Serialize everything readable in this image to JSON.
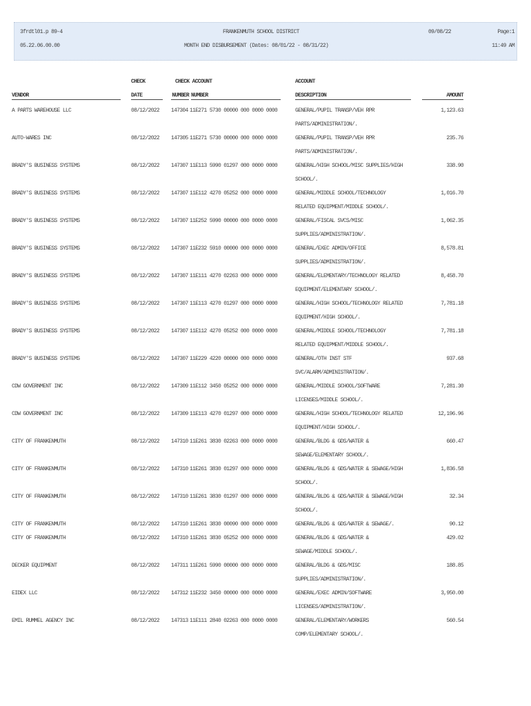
{
  "header": {
    "program": "3frdtl01.p 89-4",
    "version": "05.22.06.00.00",
    "district": "FRANKENMUTH SCHOOL DISTRICT",
    "report_title": "MONTH END DISBURSEMENT (Dates: 08/01/22 - 08/31/22)",
    "run_date": "09/08/22",
    "page": "Page:1",
    "run_time": "11:49 AM",
    "background_color": "#e3ecf8"
  },
  "columns": {
    "vendor": "VENDOR",
    "check_top": "CHECK",
    "date": "DATE",
    "check_account_top": "CHECK ACCOUNT",
    "number": "NUMBER",
    "number2": "NUMBER",
    "account_top": "ACCOUNT",
    "description": "DESCRIPTION",
    "amount": "AMOUNT"
  },
  "rows": [
    {
      "vendor": "A PARTS WAREHOUSE LLC",
      "date": "08/12/2022",
      "check": "147304",
      "account": "11E271 5730 00000 000 0000 0000",
      "desc": [
        "GENERAL/PUPIL TRANSP/VEH RPR",
        "PARTS/ADMINISTRATION/."
      ],
      "amount": "1,123.63"
    },
    {
      "vendor": "AUTO-WARES INC",
      "date": "08/12/2022",
      "check": "147305",
      "account": "11E271 5730 00000 000 0000 0000",
      "desc": [
        "GENERAL/PUPIL TRANSP/VEH RPR",
        "PARTS/ADMINISTRATION/."
      ],
      "amount": "235.76"
    },
    {
      "vendor": "BRADY'S BUSINESS SYSTEMS",
      "date": "08/12/2022",
      "check": "147307",
      "account": "11E113 5990 01297 000 0000 0000",
      "desc": [
        "GENERAL/HIGH SCHOOL/MISC SUPPLIES/HIGH",
        "SCHOOL/."
      ],
      "amount": "338.90"
    },
    {
      "vendor": "BRADY'S BUSINESS SYSTEMS",
      "date": "08/12/2022",
      "check": "147307",
      "account": "11E112 4270 05252 000 0000 0000",
      "desc": [
        "GENERAL/MIDDLE SCHOOL/TECHNOLOGY",
        "RELATED EQUIPMENT/MIDDLE SCHOOL/."
      ],
      "amount": "1,016.70"
    },
    {
      "vendor": "BRADY'S BUSINESS SYSTEMS",
      "date": "08/12/2022",
      "check": "147307",
      "account": "11E252 5990 00000 000 0000 0000",
      "desc": [
        "GENERAL/FISCAL SVCS/MISC",
        "SUPPLIES/ADMINISTRATION/."
      ],
      "amount": "1,062.35"
    },
    {
      "vendor": "BRADY'S BUSINESS SYSTEMS",
      "date": "08/12/2022",
      "check": "147307",
      "account": "11E232 5910 00000 000 0000 0000",
      "desc": [
        "GENERAL/EXEC ADMIN/OFFICE",
        "SUPPLIES/ADMINISTRATION/."
      ],
      "amount": "8,578.81"
    },
    {
      "vendor": "BRADY'S BUSINESS SYSTEMS",
      "date": "08/12/2022",
      "check": "147307",
      "account": "11E111 4270 02263 000 0000 0000",
      "desc": [
        "GENERAL/ELEMENTARY/TECHNOLOGY RELATED",
        "EQUIPMENT/ELEMENTARY SCHOOL/."
      ],
      "amount": "8,458.70"
    },
    {
      "vendor": "BRADY'S BUSINESS SYSTEMS",
      "date": "08/12/2022",
      "check": "147307",
      "account": "11E113 4270 01297 000 0000 0000",
      "desc": [
        "GENERAL/HIGH SCHOOL/TECHNOLOGY RELATED",
        "EQUIPMENT/HIGH SCHOOL/."
      ],
      "amount": "7,781.18"
    },
    {
      "vendor": "BRADY'S BUSINESS SYSTEMS",
      "date": "08/12/2022",
      "check": "147307",
      "account": "11E112 4270 05252 000 0000 0000",
      "desc": [
        "GENERAL/MIDDLE SCHOOL/TECHNOLOGY",
        "RELATED EQUIPMENT/MIDDLE SCHOOL/."
      ],
      "amount": "7,781.18"
    },
    {
      "vendor": "BRADY'S BUSINESS SYSTEMS",
      "date": "08/12/2022",
      "check": "147307",
      "account": "11E229 4220 00000 000 0000 0000",
      "desc": [
        "GENERAL/OTH INST STF",
        "SVC/ALARM/ADMINISTRATION/."
      ],
      "amount": "937.68"
    },
    {
      "vendor": "CDW GOVERNMENT INC",
      "date": "08/12/2022",
      "check": "147309",
      "account": "11E112 3450 05252 000 0000 0000",
      "desc": [
        "GENERAL/MIDDLE SCHOOL/SOFTWARE",
        "LICENSES/MIDDLE SCHOOL/."
      ],
      "amount": "7,281.30"
    },
    {
      "vendor": "CDW GOVERNMENT INC",
      "date": "08/12/2022",
      "check": "147309",
      "account": "11E113 4270 01297 000 0000 0000",
      "desc": [
        "GENERAL/HIGH SCHOOL/TECHNOLOGY RELATED",
        "EQUIPMENT/HIGH SCHOOL/."
      ],
      "amount": "12,196.96"
    },
    {
      "vendor": "CITY OF FRANKENMUTH",
      "date": "08/12/2022",
      "check": "147310",
      "account": "11E261 3830 02263 000 0000 0000",
      "desc": [
        "GENERAL/BLDG & GDS/WATER &",
        "SEWAGE/ELEMENTARY SCHOOL/."
      ],
      "amount": "660.47"
    },
    {
      "vendor": "CITY OF FRANKENMUTH",
      "date": "08/12/2022",
      "check": "147310",
      "account": "11E261 3830 01297 000 0000 0000",
      "desc": [
        "GENERAL/BLDG & GDS/WATER & SEWAGE/HIGH",
        "SCHOOL/."
      ],
      "amount": "1,836.58"
    },
    {
      "vendor": "CITY OF FRANKENMUTH",
      "date": "08/12/2022",
      "check": "147310",
      "account": "11E261 3830 01297 000 0000 0000",
      "desc": [
        "GENERAL/BLDG & GDS/WATER & SEWAGE/HIGH",
        "SCHOOL/."
      ],
      "amount": "32.34"
    },
    {
      "vendor": "CITY OF FRANKENMUTH",
      "date": "08/12/2022",
      "check": "147310",
      "account": "11E261 3830 00090 000 0000 0000",
      "desc": [
        "GENERAL/BLDG & GDS/WATER & SEWAGE/."
      ],
      "amount": "90.12"
    },
    {
      "vendor": "CITY OF FRANKENMUTH",
      "date": "08/12/2022",
      "check": "147310",
      "account": "11E261 3830 05252 000 0000 0000",
      "desc": [
        "GENERAL/BLDG & GDS/WATER &",
        "SEWAGE/MIDDLE SCHOOL/."
      ],
      "amount": "429.02"
    },
    {
      "vendor": "DECKER EQUIPMENT",
      "date": "08/12/2022",
      "check": "147311",
      "account": "11E261 5990 00000 000 0000 0000",
      "desc": [
        "GENERAL/BLDG & GDS/MISC",
        "SUPPLIES/ADMINISTRATION/."
      ],
      "amount": "188.85"
    },
    {
      "vendor": "EIDEX LLC",
      "date": "08/12/2022",
      "check": "147312",
      "account": "11E232 3450 00000 000 0000 0000",
      "desc": [
        "GENERAL/EXEC ADMIN/SOFTWARE",
        "LICENSES/ADMINISTRATION/."
      ],
      "amount": "3,950.00"
    },
    {
      "vendor": "EMIL RUMMEL AGENCY INC",
      "date": "08/12/2022",
      "check": "147313",
      "account": "11E111 2840 02263 000 0000 0000",
      "desc": [
        "GENERAL/ELEMENTARY/WORKERS",
        "COMP/ELEMENTARY SCHOOL/."
      ],
      "amount": "560.54"
    }
  ]
}
